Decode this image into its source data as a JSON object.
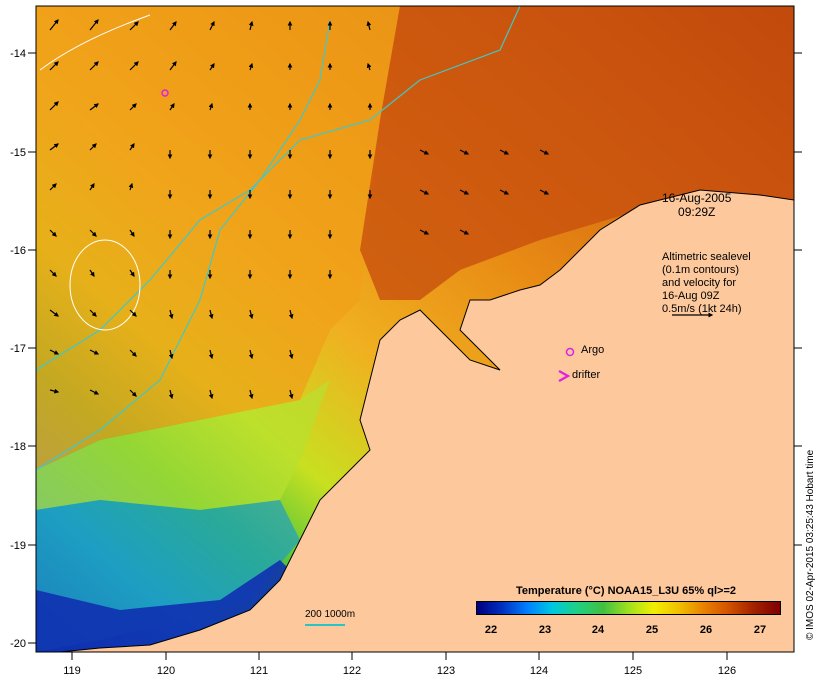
{
  "map": {
    "date": "16-Aug-2005",
    "time": "09:29Z",
    "legend_lines": [
      "Altimetric sealevel",
      "(0.1m contours)",
      "and velocity for",
      "16-Aug 09Z",
      "0.5m/s (1kt 24h)"
    ],
    "argo_label": "Argo",
    "drifter_label": "drifter",
    "credit": "© IMOS 02-Apr-2015 03:25:43 Hobart time",
    "scale_label": "200  1000m",
    "colorbar": {
      "title": "Temperature (°C) NOAA15_L3U 65% ql>=2",
      "ticks": [
        "22",
        "23",
        "24",
        "25",
        "26",
        "27"
      ]
    },
    "lon_ticks": [
      "119",
      "120",
      "121",
      "122",
      "123",
      "124",
      "125",
      "126"
    ],
    "lat_ticks": [
      "-14",
      "-15",
      "-16",
      "-17",
      "-18",
      "-19",
      "-20"
    ],
    "colors": {
      "land": "#fcc89c",
      "warm": "#c0400c",
      "mid": "#e89010",
      "cool": "#c8e020",
      "cold": "#1030b0",
      "isobath": "#40c8c8",
      "argo": "#e020e0"
    }
  }
}
